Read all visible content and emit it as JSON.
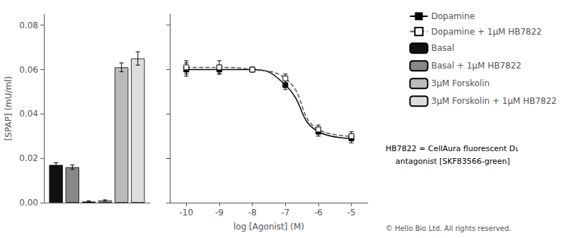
{
  "chart_data": [
    {
      "type": "line",
      "xlabel": "log [Agonist] (M)",
      "x": [
        -10,
        -9,
        -8,
        -7,
        -6,
        -5
      ],
      "series": [
        {
          "name": "Dopamine",
          "color": "#000000",
          "marker": "square",
          "line_style": "solid",
          "values": [
            0.06,
            0.06,
            0.06,
            0.053,
            0.032,
            0.029
          ],
          "errors": [
            0.003,
            0.002,
            0.001,
            0.002,
            0.002,
            0.002
          ]
        },
        {
          "name": "Dopamine + 1μM HB7822",
          "color": "#555555",
          "marker": "hollow_square",
          "line_style": "dashed",
          "values": [
            0.061,
            0.061,
            0.06,
            0.056,
            0.033,
            0.03
          ],
          "errors": [
            0.003,
            0.003,
            0.001,
            0.002,
            0.002,
            0.002
          ]
        }
      ],
      "xlim": [
        -10.5,
        -4.5
      ],
      "xticks": [
        -10,
        -9,
        -8,
        -7,
        -6,
        -5
      ],
      "ylim": [
        0.0,
        0.085
      ],
      "yticks": [
        {
          "value": 0,
          "label": "0.00"
        },
        0.02,
        0.04,
        0.06,
        0.08
      ],
      "grid": false,
      "legend": "right",
      "tick_labels": "x",
      "annotations": [
        "HB7822 = CellAura fluorescent D₁",
        "    antagonist [SKF83566-green]",
        "© Hello Bio Ltd. All rights reserved."
      ]
    },
    {
      "type": "bar",
      "ylabel": "[SPAP] (mU/ml)",
      "categories": [
        null
      ],
      "series": [
        {
          "name": "Basal",
          "color": "#111111",
          "values": [
            0.017
          ],
          "errors": [
            0.001
          ]
        },
        {
          "name": "Basal + 1μM HB7822",
          "color": "#888888",
          "values": [
            0.016
          ],
          "errors": [
            0.001
          ]
        },
        {
          "color": "#333333",
          "values": [
            0.0005
          ],
          "errors": [
            0.0003
          ]
        },
        {
          "color": "#aaaaaa",
          "values": [
            0.001
          ],
          "errors": [
            0.0003
          ]
        },
        {
          "name": "3μM Forskolin",
          "color": "#bbbbbb",
          "values": [
            0.061
          ],
          "errors": [
            0.002
          ]
        },
        {
          "name": "3μM Forskolin + 1μM HB7822",
          "color": "#dddddd",
          "values": [
            0.065
          ],
          "errors": [
            0.003
          ]
        }
      ],
      "ylim": [
        0.0,
        0.085
      ],
      "yticks": [
        {
          "value": 0,
          "label": "0.00"
        },
        0.02,
        0.04,
        0.06,
        0.08
      ],
      "grid": false,
      "legend": "right",
      "tick_labels": "y"
    }
  ]
}
